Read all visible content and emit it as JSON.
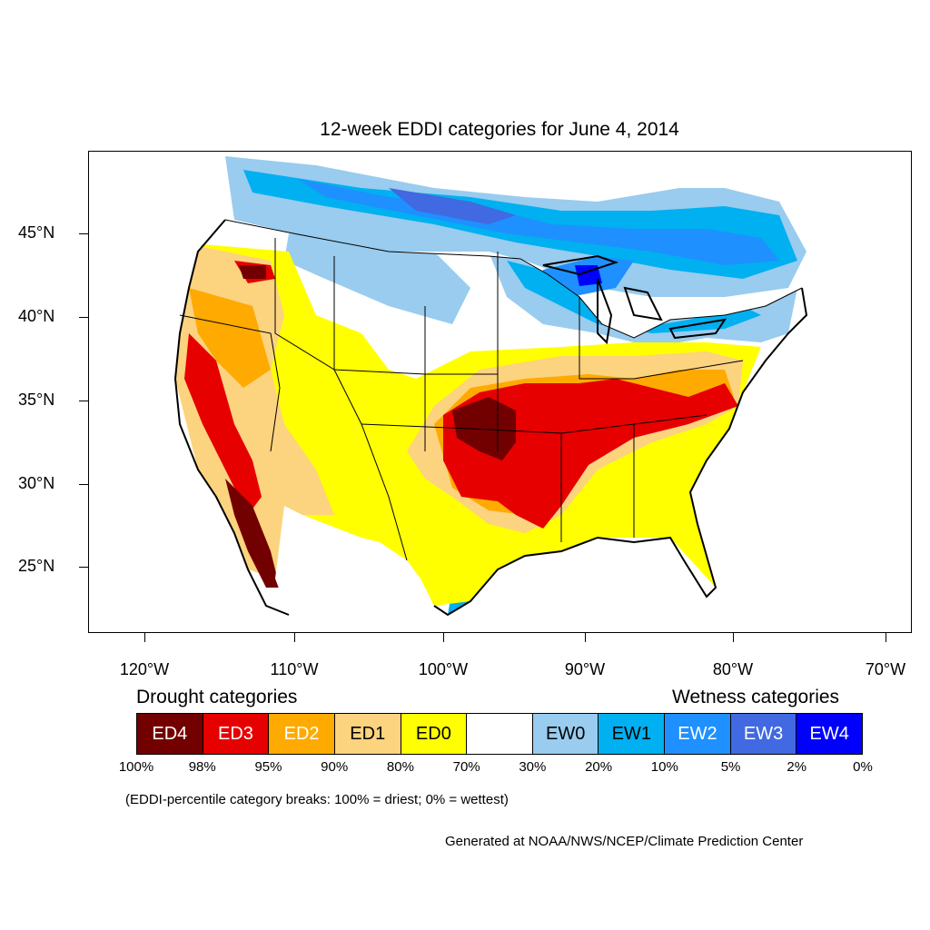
{
  "title": "12-week EDDI categories for June 4, 2014",
  "latitude_labels": [
    "45°N",
    "40°N",
    "35°N",
    "30°N",
    "25°N"
  ],
  "longitude_labels": [
    "120°W",
    "110°W",
    "100°W",
    "90°W",
    "80°W",
    "70°W"
  ],
  "drought_label": "Drought categories",
  "wetness_label": "Wetness categories",
  "categories": [
    {
      "label": "ED4",
      "color": "#730000",
      "text_color": "#ffffff"
    },
    {
      "label": "ED3",
      "color": "#e60000",
      "text_color": "#ffffff"
    },
    {
      "label": "ED2",
      "color": "#ffaa00",
      "text_color": "#ffffff"
    },
    {
      "label": "ED1",
      "color": "#fcd37f",
      "text_color": "#000000"
    },
    {
      "label": "ED0",
      "color": "#ffff00",
      "text_color": "#000000"
    },
    {
      "label": "",
      "color": "#ffffff",
      "text_color": "#000000"
    },
    {
      "label": "EW0",
      "color": "#99ccee",
      "text_color": "#000000"
    },
    {
      "label": "EW1",
      "color": "#00b0f0",
      "text_color": "#000000"
    },
    {
      "label": "EW2",
      "color": "#1e90ff",
      "text_color": "#ffffff"
    },
    {
      "label": "EW3",
      "color": "#4169e1",
      "text_color": "#ffffff"
    },
    {
      "label": "EW4",
      "color": "#0000ff",
      "text_color": "#ffffff"
    }
  ],
  "percentiles": [
    "100%",
    "98%",
    "95%",
    "90%",
    "80%",
    "70%",
    "30%",
    "20%",
    "10%",
    "5%",
    "2%",
    "0%"
  ],
  "note": "(EDDI-percentile category breaks: 100% = driest; 0% = wettest)",
  "credit": "Generated at NOAA/NWS/NCEP/Climate Prediction Center"
}
